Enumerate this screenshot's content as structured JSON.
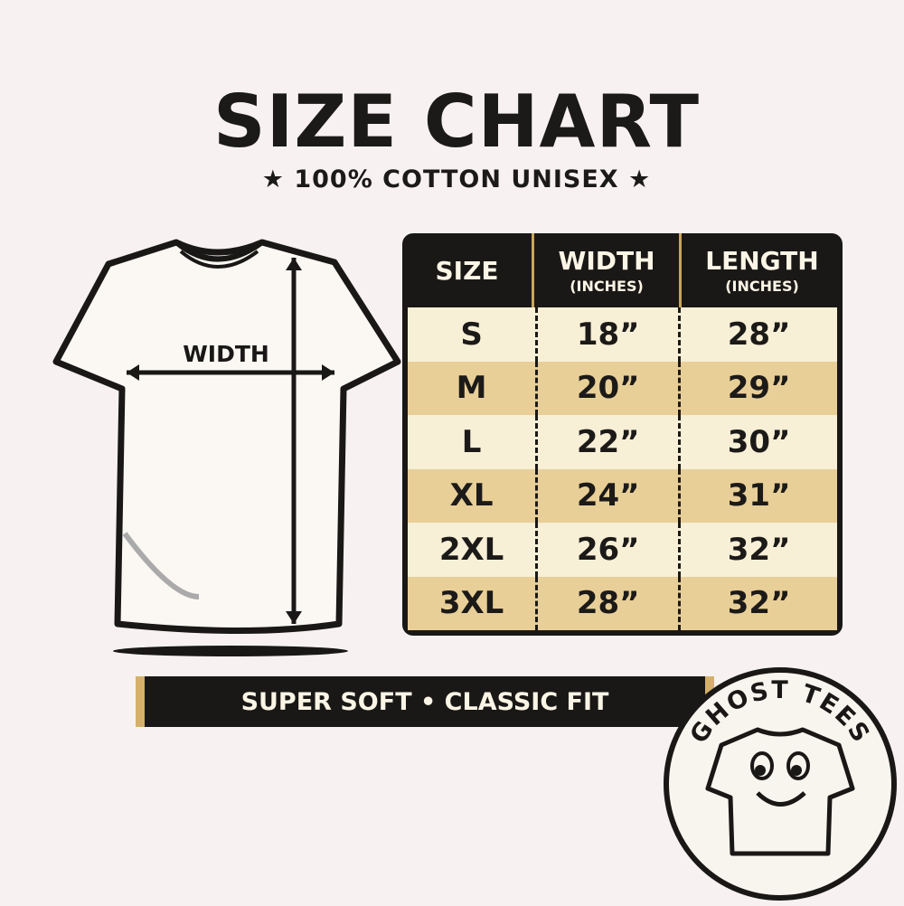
{
  "header": {
    "title": "SIZE CHART",
    "subtitle": "100% COTTON UNISEX"
  },
  "diagram": {
    "width_label": "WIDTH"
  },
  "table": {
    "columns": [
      {
        "label": "SIZE",
        "unit": ""
      },
      {
        "label": "WIDTH",
        "unit": "(INCHES)"
      },
      {
        "label": "LENGTH",
        "unit": "(INCHES)"
      }
    ],
    "rows": [
      {
        "size": "S",
        "width": "18”",
        "length": "28”"
      },
      {
        "size": "M",
        "width": "20”",
        "length": "29”"
      },
      {
        "size": "L",
        "width": "22”",
        "length": "30”"
      },
      {
        "size": "XL",
        "width": "24”",
        "length": "31”"
      },
      {
        "size": "2XL",
        "width": "26”",
        "length": "32”"
      },
      {
        "size": "3XL",
        "width": "28”",
        "length": "32”"
      }
    ]
  },
  "banner": {
    "text": "SUPER SOFT • CLASSIC FIT"
  },
  "logo": {
    "text": "GHOST TEES"
  },
  "colors": {
    "dark": "#1a1816",
    "gold": "#d4b06a",
    "cream": "#f7efd6",
    "tan": "#e8cf98",
    "background": "#f7f2f1"
  },
  "chart_data": {
    "type": "table",
    "columns": [
      "SIZE",
      "WIDTH (INCHES)",
      "LENGTH (INCHES)"
    ],
    "rows": [
      [
        "S",
        18,
        28
      ],
      [
        "M",
        20,
        29
      ],
      [
        "L",
        22,
        30
      ],
      [
        "XL",
        24,
        31
      ],
      [
        "2XL",
        26,
        32
      ],
      [
        "3XL",
        28,
        32
      ]
    ]
  }
}
